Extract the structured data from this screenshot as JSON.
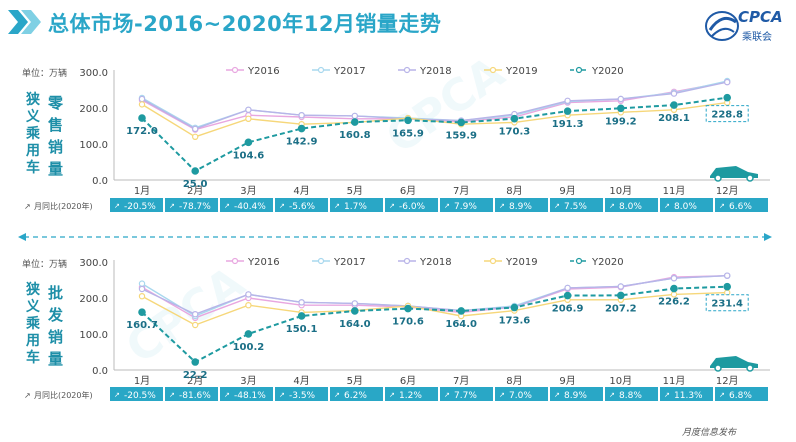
{
  "header": {
    "title": "总体市场-2016~2020年12月销量走势",
    "logo_text": "CPCA",
    "logo_sub": "乘联会"
  },
  "footer": {
    "text": "月度信息发布"
  },
  "colors": {
    "accent": "#2aa6c8",
    "Y2016": "#e8a7e0",
    "Y2017": "#a8d8ee",
    "Y2018": "#b8b4e8",
    "Y2019": "#f6d77a",
    "Y2020": "#1e9aa0",
    "yoy_bar": "#29a7c6"
  },
  "chart_data": [
    {
      "type": "line",
      "unit_label": "单位：万辆",
      "side_label_left": "狭义乘用车",
      "side_label_right": "零售销量",
      "categories": [
        "1月",
        "2月",
        "3月",
        "4月",
        "5月",
        "6月",
        "7月",
        "8月",
        "9月",
        "10月",
        "11月",
        "12月"
      ],
      "ylim": [
        0,
        300
      ],
      "yticks": [
        "0.0",
        "100.0",
        "200.0",
        "300.0"
      ],
      "series": [
        {
          "name": "Y2016",
          "values": [
            222,
            140,
            180,
            175,
            170,
            170,
            162,
            175,
            215,
            220,
            245,
            272
          ]
        },
        {
          "name": "Y2017",
          "values": [
            228,
            145,
            195,
            180,
            178,
            172,
            165,
            180,
            218,
            225,
            242,
            275
          ]
        },
        {
          "name": "Y2018",
          "values": [
            225,
            142,
            195,
            180,
            178,
            170,
            165,
            183,
            220,
            225,
            240,
            272
          ]
        },
        {
          "name": "Y2019",
          "values": [
            210,
            120,
            170,
            155,
            160,
            172,
            155,
            160,
            180,
            188,
            195,
            215
          ]
        },
        {
          "name": "Y2020",
          "values": [
            172.0,
            25.0,
            104.6,
            142.9,
            160.8,
            165.9,
            159.9,
            170.3,
            191.3,
            199.2,
            208.1,
            228.8
          ]
        }
      ],
      "data_labels": [
        "172.0",
        "25.0",
        "104.6",
        "142.9",
        "160.8",
        "165.9",
        "159.9",
        "170.3",
        "191.3",
        "199.2",
        "208.1",
        "228.8"
      ],
      "highlight_label": "228.8",
      "yoy_label": "月同比(2020年)",
      "yoy": [
        "-20.5%",
        "-78.7%",
        "-40.4%",
        "-5.6%",
        "1.7%",
        "-6.0%",
        "7.9%",
        "8.9%",
        "7.5%",
        "8.0%",
        "8.0%",
        "6.6%"
      ]
    },
    {
      "type": "line",
      "unit_label": "单位：万辆",
      "side_label_left": "狭义乘用车",
      "side_label_right": "批发销量",
      "categories": [
        "1月",
        "2月",
        "3月",
        "4月",
        "5月",
        "6月",
        "7月",
        "8月",
        "9月",
        "10月",
        "11月",
        "12月"
      ],
      "ylim": [
        0,
        300
      ],
      "yticks": [
        "0.0",
        "100.0",
        "200.0",
        "300.0"
      ],
      "series": [
        {
          "name": "Y2016",
          "values": [
            230,
            145,
            200,
            180,
            180,
            175,
            160,
            175,
            225,
            230,
            258,
            262
          ]
        },
        {
          "name": "Y2017",
          "values": [
            240,
            150,
            210,
            188,
            185,
            178,
            165,
            178,
            228,
            232,
            255,
            262
          ]
        },
        {
          "name": "Y2018",
          "values": [
            225,
            155,
            210,
            188,
            185,
            178,
            165,
            175,
            228,
            232,
            255,
            262
          ]
        },
        {
          "name": "Y2019",
          "values": [
            205,
            125,
            180,
            160,
            165,
            178,
            150,
            165,
            195,
            195,
            210,
            215
          ]
        },
        {
          "name": "Y2020",
          "values": [
            160.7,
            22.2,
            100.2,
            150.1,
            164.0,
            170.6,
            164.0,
            173.6,
            206.9,
            207.2,
            226.2,
            231.4
          ]
        }
      ],
      "data_labels": [
        "160.7",
        "22.2",
        "100.2",
        "150.1",
        "164.0",
        "170.6",
        "164.0",
        "173.6",
        "206.9",
        "207.2",
        "226.2",
        "231.4"
      ],
      "highlight_label": "231.4",
      "yoy_label": "月同比(2020年)",
      "yoy": [
        "-20.5%",
        "-81.6%",
        "-48.1%",
        "-3.5%",
        "6.2%",
        "1.2%",
        "7.7%",
        "7.0%",
        "8.9%",
        "8.8%",
        "11.3%",
        "6.8%"
      ]
    }
  ]
}
